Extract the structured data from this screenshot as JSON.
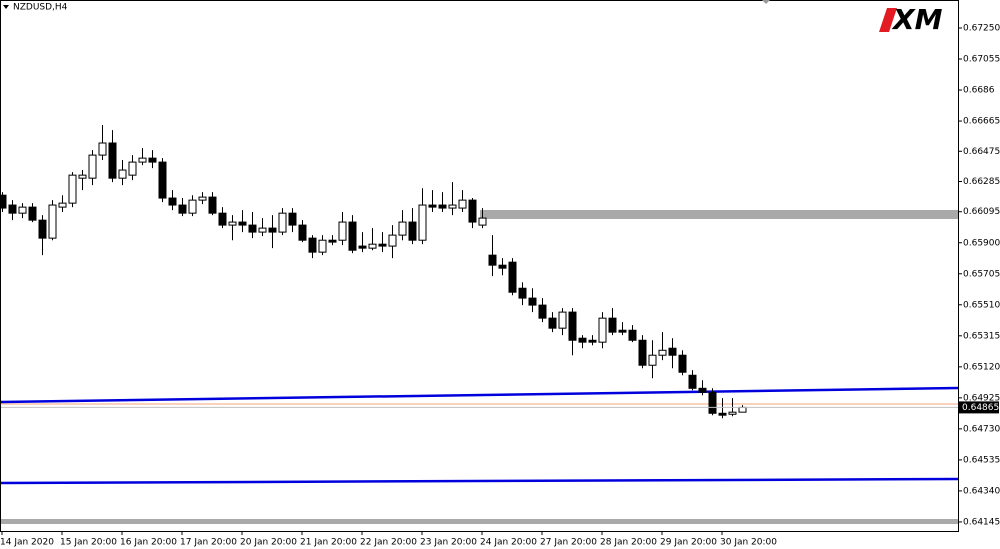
{
  "chart_data": {
    "type": "candlestick",
    "title": "NZDUSD,H4",
    "logo": "XM",
    "categories": [
      "14 Jan 2020",
      null,
      null,
      null,
      null,
      null,
      "15 Jan 20:00",
      null,
      null,
      null,
      null,
      null,
      "16 Jan 20:00",
      null,
      null,
      null,
      null,
      null,
      "17 Jan 20:00",
      null,
      null,
      null,
      null,
      null,
      "20 Jan 20:00",
      null,
      null,
      null,
      null,
      null,
      "21 Jan 20:00",
      null,
      null,
      null,
      null,
      null,
      "22 Jan 20:00",
      null,
      null,
      null,
      null,
      null,
      "23 Jan 20:00",
      null,
      null,
      null,
      null,
      null,
      "24 Jan 20:00",
      null,
      null,
      null,
      null,
      null,
      "27 Jan 20:00",
      null,
      null,
      null,
      null,
      null,
      "28 Jan 20:00",
      null,
      null,
      null,
      null,
      null,
      "29 Jan 20:00",
      null,
      null,
      null,
      null,
      null,
      "30 Jan 20:00",
      null,
      null
    ],
    "open": [
      0.66199,
      0.66137,
      0.66086,
      0.66124,
      0.66042,
      0.65929,
      0.66124,
      0.66149,
      0.66306,
      0.66306,
      0.66451,
      0.66527,
      0.66306,
      0.66325,
      0.66407,
      0.66432,
      0.66407,
      0.66181,
      0.66137,
      0.66086,
      0.66168,
      0.66187,
      0.66086,
      0.66011,
      0.6603,
      0.66011,
      0.65967,
      0.65992,
      0.65967,
      0.66086,
      0.66011,
      0.65929,
      0.65841,
      0.65916,
      0.65916,
      0.6603,
      0.65879,
      0.65866,
      0.65891,
      0.65879,
      0.65948,
      0.6603,
      0.65916,
      0.66137,
      0.66137,
      0.66118,
      0.66118,
      0.66168,
      0.66011,
      0.65822,
      0.65759,
      0.65778,
      0.65614,
      0.65552,
      0.65508,
      0.65426,
      0.65363,
      0.65464,
      0.653,
      0.65287,
      0.65275,
      0.65426,
      0.6535,
      0.6535,
      0.65287,
      0.6513,
      0.65193,
      0.65237,
      0.65193,
      0.65067,
      0.64985,
      0.6496,
      0.64828,
      0.64822,
      0.64835
    ],
    "high": [
      0.66218,
      0.66168,
      0.66149,
      0.66149,
      0.66074,
      0.66168,
      0.66199,
      0.66344,
      0.66357,
      0.66482,
      0.6664,
      0.66608,
      0.6642,
      0.66451,
      0.66495,
      0.66482,
      0.66432,
      0.66231,
      0.66181,
      0.66199,
      0.66218,
      0.66218,
      0.66124,
      0.66074,
      0.66105,
      0.66093,
      0.66055,
      0.66074,
      0.66118,
      0.66118,
      0.66042,
      0.65948,
      0.65948,
      0.65948,
      0.66093,
      0.66074,
      0.65967,
      0.65992,
      0.65967,
      0.66011,
      0.66105,
      0.66118,
      0.66243,
      0.66231,
      0.66218,
      0.66281,
      0.66231,
      0.66181,
      0.66118,
      0.65948,
      0.65803,
      0.65803,
      0.65652,
      0.65614,
      0.65552,
      0.65464,
      0.65489,
      0.65489,
      0.65319,
      0.65319,
      0.65464,
      0.65489,
      0.65401,
      0.65382,
      0.65319,
      0.65287,
      0.65338,
      0.653,
      0.65224,
      0.65099,
      0.65036,
      0.64985,
      0.64923,
      0.64923,
      0.64879
    ],
    "low": [
      0.66093,
      0.66042,
      0.66055,
      0.6603,
      0.65822,
      0.65916,
      0.66093,
      0.66124,
      0.66231,
      0.66262,
      0.6642,
      0.66281,
      0.66262,
      0.66294,
      0.66388,
      0.66369,
      0.66155,
      0.66105,
      0.66067,
      0.66067,
      0.66143,
      0.66074,
      0.65992,
      0.65916,
      0.65967,
      0.65929,
      0.65942,
      0.65866,
      0.65948,
      0.65967,
      0.65904,
      0.65803,
      0.65822,
      0.65885,
      0.65885,
      0.65835,
      0.65841,
      0.65853,
      0.65841,
      0.65803,
      0.65916,
      0.65891,
      0.65891,
      0.66093,
      0.66093,
      0.66074,
      0.66093,
      0.65992,
      0.65992,
      0.6569,
      0.65696,
      0.6557,
      0.65508,
      0.65464,
      0.65401,
      0.65338,
      0.65319,
      0.65193,
      0.65237,
      0.65256,
      0.65237,
      0.65319,
      0.65319,
      0.65275,
      0.65111,
      0.65048,
      0.65162,
      0.65111,
      0.65067,
      0.64973,
      0.64941,
      0.64816,
      0.64797,
      0.64809,
      0.64835
    ],
    "close": [
      0.66118,
      0.66086,
      0.66124,
      0.66042,
      0.65929,
      0.66137,
      0.66149,
      0.66325,
      0.66325,
      0.66451,
      0.66527,
      0.66306,
      0.66357,
      0.66407,
      0.66432,
      0.66407,
      0.66181,
      0.66137,
      0.66086,
      0.66168,
      0.66187,
      0.66086,
      0.66011,
      0.6603,
      0.66011,
      0.65967,
      0.65992,
      0.65967,
      0.66086,
      0.66011,
      0.65916,
      0.65841,
      0.65916,
      0.65904,
      0.6603,
      0.65853,
      0.65866,
      0.65891,
      0.65879,
      0.65948,
      0.6603,
      0.65916,
      0.66137,
      0.66124,
      0.66118,
      0.66137,
      0.66168,
      0.6603,
      0.66055,
      0.65759,
      0.6574,
      0.65589,
      0.65552,
      0.65508,
      0.65426,
      0.65363,
      0.65464,
      0.65287,
      0.65275,
      0.65275,
      0.65426,
      0.65338,
      0.65338,
      0.65287,
      0.6513,
      0.65193,
      0.65224,
      0.65193,
      0.65086,
      0.64985,
      0.6496,
      0.64828,
      0.64816,
      0.64835,
      0.64865
    ],
    "current_price": 0.64865,
    "ylim": [
      0.64088,
      0.67426
    ],
    "yticks": [
      {
        "value": 0.6725,
        "label": "0.67250"
      },
      0.67055,
      0.6686,
      0.66665,
      0.66475,
      0.66285,
      0.66095,
      {
        "value": 0.659,
        "label": "0.65900"
      },
      0.65705,
      {
        "value": 0.6551,
        "label": "0.65510"
      },
      0.65315,
      {
        "value": 0.6512,
        "label": "0.65120"
      },
      0.64925,
      {
        "value": 0.6473,
        "label": "0.64730"
      },
      0.64535,
      {
        "value": 0.6434,
        "label": "0.64340"
      },
      0.64145
    ],
    "bull_color": "#ffffff",
    "bear_color": "#000000",
    "wick_color": "#000000"
  }
}
